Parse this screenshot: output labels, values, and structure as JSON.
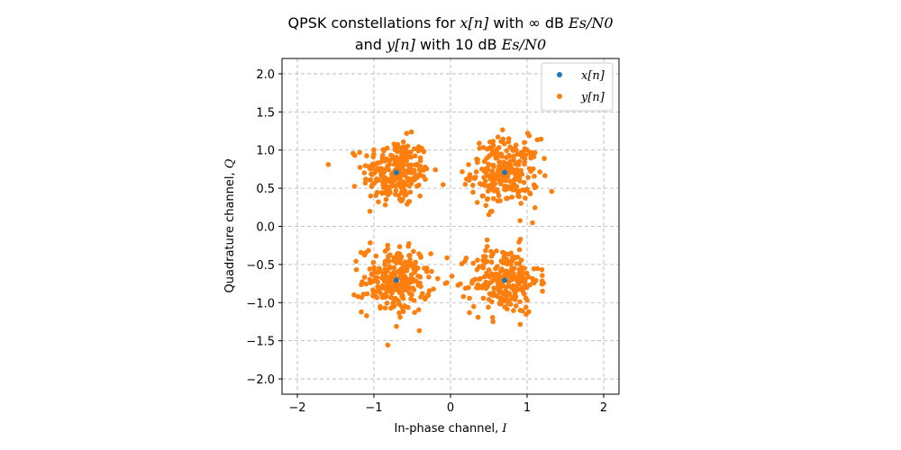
{
  "chart_data": {
    "type": "scatter",
    "title": {
      "line1_prefix": "QPSK constellations for ",
      "line1_var": "x[n]",
      "line1_mid": " with ∞ dB ",
      "line1_ratio": "Es/N0",
      "line2_prefix": "and ",
      "line2_var": "y[n]",
      "line2_mid": " with 10 dB ",
      "line2_ratio": "Es/N0"
    },
    "xlabel_text": "In-phase channel, ",
    "xlabel_var": "I",
    "ylabel_text": "Quadrature channel, ",
    "ylabel_var": "Q",
    "xlim": [
      -2.2,
      2.2
    ],
    "ylim": [
      -2.2,
      2.2
    ],
    "xticks": [
      -2,
      -1,
      0,
      1,
      2
    ],
    "xtick_labels": [
      "−2",
      "−1",
      "0",
      "1",
      "2"
    ],
    "yticks": [
      2.0,
      1.5,
      1.0,
      0.5,
      0.0,
      -0.5,
      -1.0,
      -1.5,
      -2.0
    ],
    "ytick_labels": [
      "2.0",
      "1.5",
      "1.0",
      "0.5",
      "0.0",
      "−0.5",
      "−1.0",
      "−1.5",
      "−2.0"
    ],
    "grid": true,
    "legend_position": "top-right",
    "noise_sigma": 0.22,
    "points_per_cluster": 250,
    "series": [
      {
        "name": "x[n]",
        "color": "#1f77b4",
        "x": [
          -0.707,
          0.707,
          -0.707,
          0.707
        ],
        "y": [
          0.707,
          0.707,
          -0.707,
          -0.707
        ]
      },
      {
        "name": "y[n]",
        "color": "#ff7f0e",
        "centers_x": [
          -0.707,
          0.707,
          -0.707,
          0.707
        ],
        "centers_y": [
          0.707,
          0.707,
          -0.707,
          -0.707
        ]
      }
    ]
  }
}
